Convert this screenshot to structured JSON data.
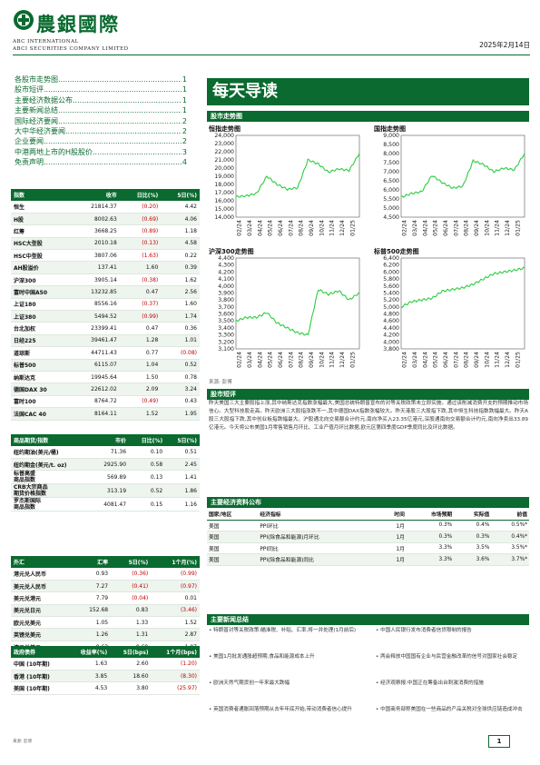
{
  "header": {
    "logo_cn": "農銀國際",
    "logo_en1": "ABC INTERNATIONAL",
    "logo_en2": "ABCI SECURITIES COMPANY LIMITED",
    "date": "2025年2月14日"
  },
  "toc": [
    {
      "label": "各股市走势图",
      "page": "1"
    },
    {
      "label": "股市短评",
      "page": "1"
    },
    {
      "label": "主要经济数据公布",
      "page": "1"
    },
    {
      "label": "主要新闻总结",
      "page": "1"
    },
    {
      "label": "国际经济要闻",
      "page": "2"
    },
    {
      "label": "大中华经济要闻",
      "page": "2"
    },
    {
      "label": "企业要闻",
      "page": "2"
    },
    {
      "label": "中港两地上市的H股股价",
      "page": "3"
    },
    {
      "label": "免责声明",
      "page": "4"
    }
  ],
  "indices_table": {
    "headers": [
      "指数",
      "收市",
      "日比(%)",
      "5日(%)"
    ],
    "rows": [
      [
        "恒生",
        "21814.37",
        "(0.20)",
        "4.42"
      ],
      [
        "H股",
        "8002.63",
        "(0.69)",
        "4.06"
      ],
      [
        "红筹",
        "3668.25",
        "(0.89)",
        "1.18"
      ],
      [
        "HSC大型股",
        "2010.18",
        "(0.13)",
        "4.58"
      ],
      [
        "HSC中型股",
        "3807.06",
        "(1.63)",
        "0.22"
      ],
      [
        "AH股溢价",
        "137.41",
        "1.60",
        "0.39"
      ],
      [
        "沪深300",
        "3905.14",
        "(0.38)",
        "1.62"
      ],
      [
        "富时中国A50",
        "13232.85",
        "0.47",
        "2.56"
      ],
      [
        "上证180",
        "8556.16",
        "(0.37)",
        "1.60"
      ],
      [
        "上证380",
        "5494.52",
        "(0.99)",
        "1.74"
      ],
      [
        "台北加权",
        "23399.41",
        "0.47",
        "0.36"
      ],
      [
        "日经225",
        "39461.47",
        "1.28",
        "1.01"
      ],
      [
        "道琼斯",
        "44711.43",
        "0.77",
        "(0.08)"
      ],
      [
        "标普500",
        "6115.07",
        "1.04",
        "0.52"
      ],
      [
        "纳斯达克",
        "19945.64",
        "1.50",
        "0.78"
      ],
      [
        "德国DAX 30",
        "22612.02",
        "2.09",
        "3.24"
      ],
      [
        "富时100",
        "8764.72",
        "(0.49)",
        "0.43"
      ],
      [
        "法国CAC 40",
        "8164.11",
        "1.52",
        "1.95"
      ]
    ]
  },
  "commodity_table": {
    "headers": [
      "商品期货/指数",
      "市价",
      "日比(%)",
      "5日(%)"
    ],
    "rows": [
      [
        "纽约期油(美元/桶)",
        "71.36",
        "0.10",
        "0.51"
      ],
      [
        "纽约期金(美元/t. oz)",
        "2925.90",
        "0.58",
        "2.45"
      ],
      [
        "标普高盛\n商品指数",
        "569.89",
        "0.13",
        "1.41"
      ],
      [
        "CRB大宗商品\n期货价格指数",
        "313.19",
        "0.52",
        "1.86"
      ],
      [
        "罗杰斯国际\n商品指数",
        "4081.47",
        "0.15",
        "1.16"
      ]
    ]
  },
  "fx_table": {
    "headers": [
      "外汇",
      "汇率",
      "5日(%)",
      "1个月(%)"
    ],
    "rows": [
      [
        "港元兑人民币",
        "0.93",
        "(0.36)",
        "(0.99)"
      ],
      [
        "美元兑人民币",
        "7.27",
        "(0.41)",
        "(0.97)"
      ],
      [
        "美元兑港元",
        "7.79",
        "(0.04)",
        "0.01"
      ],
      [
        "美元兑日元",
        "152.68",
        "0.83",
        "(3.46)"
      ],
      [
        "欧元兑美元",
        "1.05",
        "1.33",
        "1.52"
      ],
      [
        "英镑兑美元",
        "1.26",
        "1.31",
        "2.87"
      ],
      [
        "澳元兑美元",
        "0.63",
        "0.69",
        "1.97"
      ]
    ]
  },
  "bond_table": {
    "headers": [
      "政府债券",
      "收益率(%)",
      "5日(bps)",
      "1个月(bps)"
    ],
    "rows": [
      [
        "中国 (10年期)",
        "1.63",
        "2.60",
        "(1.20)"
      ],
      [
        "香港 (10年期)",
        "3.85",
        "18.60",
        "(8.30)"
      ],
      [
        "美国 (10年期)",
        "4.53",
        "3.80",
        "(25.97)"
      ]
    ]
  },
  "bottom_note": "来源: 彭博",
  "main_title": "每天导读",
  "sections": {
    "charts": "股市走势图",
    "commentary": "股市短评",
    "economic": "主要经济资料公布",
    "news": "主要新闻总结"
  },
  "charts": [
    {
      "title": "恒指走势图",
      "yticks": [
        "24,000",
        "23,000",
        "22,000",
        "21,000",
        "20,000",
        "19,000",
        "18,000",
        "17,000",
        "16,000",
        "15,000",
        "14,000"
      ],
      "ylim": [
        14000,
        24000
      ]
    },
    {
      "title": "国指走势图",
      "yticks": [
        "9,000",
        "8,500",
        "8,000",
        "7,500",
        "7,000",
        "6,500",
        "6,000",
        "5,500",
        "5,000",
        "4,500"
      ],
      "ylim": [
        4500,
        9000
      ]
    },
    {
      "title": "沪深300走势图",
      "yticks": [
        "4,400",
        "4,300",
        "4,200",
        "4,100",
        "4,000",
        "3,900",
        "3,800",
        "3,700",
        "3,600",
        "3,500",
        "3,400",
        "3,300",
        "3,200",
        "3,100"
      ],
      "ylim": [
        3100,
        4400
      ]
    },
    {
      "title": "标普500走势图",
      "yticks": [
        "6,400",
        "6,200",
        "6,000",
        "5,800",
        "5,600",
        "5,400",
        "5,200",
        "5,000",
        "4,800",
        "4,600",
        "4,400",
        "4,200",
        "4,000",
        "3,800"
      ],
      "ylim": [
        3800,
        6400
      ]
    }
  ],
  "chart_xticks": [
    "02/24",
    "03/24",
    "04/24",
    "05/24",
    "06/24",
    "07/24",
    "08/24",
    "09/24",
    "10/24",
    "11/24",
    "12/24",
    "01/25"
  ],
  "chart_data": [
    {
      "type": "line",
      "title": "恒指走势图",
      "ylim": [
        14000,
        24000
      ],
      "x": [
        "02/24",
        "03/24",
        "04/24",
        "05/24",
        "06/24",
        "07/24",
        "08/24",
        "09/24",
        "10/24",
        "11/24",
        "12/24",
        "01/25",
        "02/25"
      ],
      "values": [
        16500,
        16600,
        16900,
        19000,
        18000,
        17400,
        17600,
        21000,
        20500,
        19500,
        19900,
        19700,
        21814
      ]
    },
    {
      "type": "line",
      "title": "国指走势图",
      "ylim": [
        4500,
        9000
      ],
      "x": [
        "02/24",
        "03/24",
        "04/24",
        "05/24",
        "06/24",
        "07/24",
        "08/24",
        "09/24",
        "10/24",
        "11/24",
        "12/24",
        "01/25",
        "02/25"
      ],
      "values": [
        5600,
        5800,
        5900,
        6800,
        6400,
        6100,
        6200,
        7600,
        7400,
        7000,
        7200,
        7100,
        8003
      ]
    },
    {
      "type": "line",
      "title": "沪深300走势图",
      "ylim": [
        3100,
        4400
      ],
      "x": [
        "02/24",
        "03/24",
        "04/24",
        "05/24",
        "06/24",
        "07/24",
        "08/24",
        "09/24",
        "10/24",
        "11/24",
        "12/24",
        "01/25",
        "02/25"
      ],
      "values": [
        3500,
        3550,
        3550,
        3620,
        3470,
        3400,
        3330,
        3300,
        3950,
        3880,
        3930,
        3800,
        3905
      ]
    },
    {
      "type": "line",
      "title": "标普500走势图",
      "ylim": [
        3800,
        6400
      ],
      "x": [
        "02/24",
        "03/24",
        "04/24",
        "05/24",
        "06/24",
        "07/24",
        "08/24",
        "09/24",
        "10/24",
        "11/24",
        "12/24",
        "01/25",
        "02/25"
      ],
      "values": [
        5000,
        5150,
        5200,
        5250,
        5450,
        5500,
        5550,
        5650,
        5800,
        5950,
        6000,
        6050,
        6115
      ]
    }
  ],
  "source_label": "来源: 彭博",
  "commentary": "昨天美国三大主要股指上涨,其中纳斯达克指数涨幅最大,美国总统特朗普宣布的对等关税政策未立即实施。通过该削减消费开支的预期推动市场信心。大型科技股走高。昨天欧洲三大股指涨跌不一,其中德国DAX指数涨幅较大。昨天港股三大股指下跌,其中恒生科技指数跌幅最大。昨天A股三大股指下跌,其中创业板指跌幅最大。沪股通北向交易额合计约元,南向净买入23.35亿港元,深股通南向交易额合计约元,南向净卖出33.89亿港元。今天将公布美国1月零售销售月环比、工业产值月环比数据,欧元区第四季度GDP季度同比及环比数据。",
  "eco_table": {
    "headers": [
      "国家/地区",
      "经济指标",
      "时间",
      "市场预期",
      "实际值",
      "前值"
    ],
    "rows": [
      [
        "美国",
        "PPI环比",
        "1月",
        "0.3%",
        "0.4%",
        "0.5%*"
      ],
      [
        "美国",
        "PPI(除食品和能源)月环比",
        "1月",
        "0.3%",
        "0.3%",
        "0.4%*"
      ],
      [
        "美国",
        "PPI同比",
        "1月",
        "3.3%",
        "3.5%",
        "3.5%*"
      ],
      [
        "美国",
        "PPI(除食品和能源)同比",
        "1月",
        "3.3%",
        "3.6%",
        "3.7%*"
      ]
    ]
  },
  "news": {
    "left": [
      "特朗普对等关税政策:瞄准税、补贴、汇率,将一并处理(1月前后)",
      "美国1月批发通胀超预期,食品和能源成本上升",
      "欧洲天然气期货创一年来最大跌幅",
      "英国消费者通胀回落预期从去年年底开始,带动消费者信心提升"
    ],
    "right": [
      "中国人民银行发布消费者信贷限制的报告",
      "两会释放中国国有企业与民营金融改革的信号对国家社会稳定",
      "经济观察报:中国正在筹备出台刺激消费的措施",
      "中国商务部称美国在一些商品的产品关税对全球供应链造成冲击"
    ]
  },
  "page_number": "1"
}
